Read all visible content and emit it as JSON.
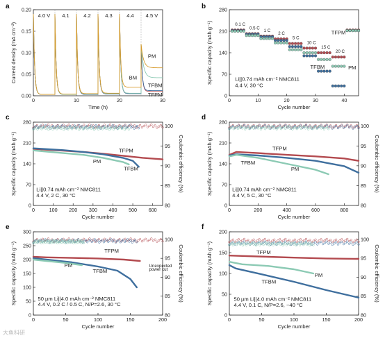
{
  "colors": {
    "tfpm": "#b34a4f",
    "tfbm": "#3f6f9e",
    "pm": "#8ccab4",
    "bm": "#d79a2a",
    "lightpm": "#a9d6c8",
    "grey": "#888888"
  },
  "watermark": "大鱼科研",
  "panels": [
    {
      "id": "a",
      "label": "a",
      "type": "line",
      "xlabel": "Time (h)",
      "ylabel": "Current density (mA cm⁻²)",
      "xlim": [
        0,
        30
      ],
      "ylim": [
        0,
        0.2
      ],
      "xticks": [
        0,
        10,
        20,
        30
      ],
      "yticks": [
        0,
        0.05,
        0.1,
        0.15,
        0.2
      ],
      "yticklabels": [
        "0.00",
        "0.05",
        "0.10",
        "0.15",
        "0.20"
      ],
      "voltage_steps": [
        {
          "label": "4.0 V",
          "start": 0,
          "end": 5
        },
        {
          "label": "4.1",
          "start": 5,
          "end": 10
        },
        {
          "label": "4.2",
          "start": 10,
          "end": 15
        },
        {
          "label": "4.3",
          "start": 15,
          "end": 20
        },
        {
          "label": "4.4",
          "start": 20,
          "end": 25
        },
        {
          "label": "4.5 V",
          "start": 25,
          "end": 30
        }
      ],
      "series": [
        {
          "name": "TFPM",
          "color": "tfpm",
          "end_values": [
            0.003,
            0.003,
            0.003,
            0.004,
            0.005,
            0.01
          ]
        },
        {
          "name": "TFBM",
          "color": "tfbm",
          "end_values": [
            0.003,
            0.003,
            0.003,
            0.004,
            0.005,
            0.012
          ]
        },
        {
          "name": "PM",
          "color": "pm",
          "end_values": [
            0.003,
            0.003,
            0.004,
            0.005,
            0.006,
            0.042
          ]
        },
        {
          "name": "BM",
          "color": "bm",
          "end_values": [
            0.003,
            0.004,
            0.005,
            0.006,
            0.02,
            0.065
          ]
        }
      ],
      "annotations": [
        {
          "text": "PM",
          "x": 26.6,
          "y": 0.088,
          "color": "pm"
        },
        {
          "text": "BM",
          "x": 22.2,
          "y": 0.038,
          "color": "bm"
        },
        {
          "text": "TFBM",
          "x": 26.6,
          "y": 0.02,
          "color": "tfbm"
        },
        {
          "text": "TFPM",
          "x": 26.6,
          "y": -0.002,
          "color": "tfpm"
        }
      ]
    },
    {
      "id": "b",
      "label": "b",
      "type": "scatter",
      "xlabel": "Cycle number",
      "ylabel": "Specific capacity (mAh g⁻¹)",
      "xlim": [
        0,
        45
      ],
      "ylim": [
        0,
        280
      ],
      "xticks": [
        0,
        10,
        20,
        30,
        40
      ],
      "yticks": [
        0,
        70,
        140,
        210,
        280
      ],
      "rates": [
        {
          "label": "0.1 C",
          "start": 1,
          "end": 5,
          "tfpm": 214,
          "tfbm": 212,
          "pm": 210
        },
        {
          "label": "0.5 C",
          "start": 6,
          "end": 10,
          "tfpm": 202,
          "tfbm": 200,
          "pm": 196
        },
        {
          "label": "1 C",
          "start": 11,
          "end": 15,
          "tfpm": 194,
          "tfbm": 192,
          "pm": 186
        },
        {
          "label": "2 C",
          "start": 16,
          "end": 20,
          "tfpm": 185,
          "tfbm": 180,
          "pm": 172
        },
        {
          "label": "5 C",
          "start": 21,
          "end": 25,
          "tfpm": 170,
          "tfbm": 160,
          "pm": 150
        },
        {
          "label": "10 C",
          "start": 26,
          "end": 30,
          "tfpm": 155,
          "tfbm": 130,
          "pm": 140
        },
        {
          "label": "15 C",
          "start": 31,
          "end": 35,
          "tfpm": 140,
          "tfbm": 80,
          "pm": 118
        },
        {
          "label": "20 C",
          "start": 36,
          "end": 40,
          "tfpm": 126,
          "tfbm": 32,
          "pm": 96
        },
        {
          "label": "",
          "start": 41,
          "end": 45,
          "tfpm": 214,
          "tfbm": 212,
          "pm": 212
        }
      ],
      "annotations": [
        {
          "text": "TFPM",
          "x": 35.5,
          "y": 200,
          "color": "tfpm"
        },
        {
          "text": "TFBM",
          "x": 28.2,
          "y": 88,
          "color": "tfbm"
        },
        {
          "text": "PM",
          "x": 41.4,
          "y": 86,
          "color": "pm"
        },
        {
          "text": "Li||0.74 mAh cm⁻² NMC811",
          "x": 2,
          "y": 48,
          "color": "black"
        },
        {
          "text": "4.4 V, 30 °C",
          "x": 2,
          "y": 28,
          "color": "black"
        }
      ]
    },
    {
      "id": "c",
      "label": "c",
      "type": "line-dual",
      "xlabel": "Cycle number",
      "ylabel": "Specific capacity (mAh g⁻¹)",
      "y2label": "Coulombic efficiency (%)",
      "xlim": [
        0,
        650
      ],
      "ylim": [
        0,
        280
      ],
      "y2lim": [
        80,
        101
      ],
      "xticks": [
        0,
        100,
        200,
        300,
        400,
        500,
        600
      ],
      "yticks": [
        0,
        70,
        140,
        210,
        280
      ],
      "y2ticks": [
        80,
        85,
        90,
        95,
        100
      ],
      "series": [
        {
          "name": "TFPM",
          "color": "tfpm",
          "x": [
            0,
            50,
            150,
            250,
            350,
            450,
            550,
            650
          ],
          "y": [
            190,
            188,
            184,
            180,
            174,
            167,
            160,
            155
          ]
        },
        {
          "name": "TFBM",
          "color": "tfbm",
          "x": [
            0,
            50,
            150,
            250,
            350,
            450,
            500,
            530
          ],
          "y": [
            192,
            190,
            186,
            180,
            172,
            160,
            150,
            130
          ]
        },
        {
          "name": "PM",
          "color": "pm",
          "x": [
            0,
            50,
            150,
            250,
            350,
            450,
            480
          ],
          "y": [
            185,
            182,
            176,
            170,
            160,
            146,
            138
          ]
        }
      ],
      "ce": [
        {
          "name": "TFPM",
          "color": "tfpm",
          "value": 100,
          "xmax": 650
        },
        {
          "name": "TFBM",
          "color": "tfbm",
          "value": 99.8,
          "xmax": 530
        },
        {
          "name": "PM",
          "color": "pm",
          "value": 99.5,
          "xmax": 480
        }
      ],
      "annotations": [
        {
          "text": "TFPM",
          "x": 430,
          "y": 178,
          "color": "tfpm"
        },
        {
          "text": "PM",
          "x": 300,
          "y": 142,
          "color": "pm"
        },
        {
          "text": "TFBM",
          "x": 455,
          "y": 118,
          "color": "tfbm"
        },
        {
          "text": "Li||0.74 mAh cm⁻² NMC811",
          "x": 15,
          "y": 48,
          "color": "black"
        },
        {
          "text": "4.4 V, 2 C, 30 °C",
          "x": 15,
          "y": 28,
          "color": "black"
        }
      ]
    },
    {
      "id": "d",
      "label": "d",
      "type": "line-dual",
      "xlabel": "Cycle number",
      "ylabel": "Specific capacity (mAh g⁻¹)",
      "y2label": "Coulombic efficiency (%)",
      "xlim": [
        0,
        900
      ],
      "ylim": [
        0,
        280
      ],
      "y2lim": [
        80,
        101
      ],
      "xticks": [
        0,
        200,
        400,
        600,
        800
      ],
      "yticks": [
        0,
        70,
        140,
        210,
        280
      ],
      "y2ticks": [
        80,
        85,
        90,
        95,
        100
      ],
      "series": [
        {
          "name": "TFPM",
          "color": "tfpm",
          "x": [
            0,
            50,
            200,
            400,
            600,
            800,
            900
          ],
          "y": [
            170,
            180,
            176,
            170,
            165,
            158,
            150
          ]
        },
        {
          "name": "TFBM",
          "color": "tfbm",
          "x": [
            0,
            50,
            200,
            400,
            600,
            800,
            900
          ],
          "y": [
            168,
            172,
            168,
            160,
            150,
            132,
            110
          ]
        },
        {
          "name": "PM",
          "color": "pm",
          "x": [
            0,
            50,
            200,
            400,
            600,
            690
          ],
          "y": [
            165,
            170,
            160,
            140,
            120,
            105
          ]
        }
      ],
      "ce": [
        {
          "name": "TFPM",
          "color": "tfpm",
          "value": 100,
          "xmax": 900
        },
        {
          "name": "TFBM",
          "color": "tfbm",
          "value": 99.8,
          "xmax": 900
        },
        {
          "name": "PM",
          "color": "pm",
          "value": 99.6,
          "xmax": 690
        }
      ],
      "annotations": [
        {
          "text": "TFPM",
          "x": 300,
          "y": 185,
          "color": "tfpm"
        },
        {
          "text": "TFBM",
          "x": 80,
          "y": 138,
          "color": "tfbm"
        },
        {
          "text": "PM",
          "x": 430,
          "y": 117,
          "color": "pm"
        },
        {
          "text": "Li||0.74 mAh cm⁻² NMC811",
          "x": 20,
          "y": 48,
          "color": "black"
        },
        {
          "text": "4.4 V, 5 C, 30 °C",
          "x": 20,
          "y": 28,
          "color": "black"
        }
      ]
    },
    {
      "id": "e",
      "label": "e",
      "type": "line-dual",
      "xlabel": "Cycle number",
      "ylabel": "Specific capacity (mAh g⁻¹)",
      "y2label": "Coulombic efficiency (%)",
      "xlim": [
        0,
        200
      ],
      "ylim": [
        0,
        300
      ],
      "y2lim": [
        80,
        102
      ],
      "xticks": [
        0,
        50,
        100,
        150,
        200
      ],
      "yticks": [
        0,
        50,
        100,
        150,
        200,
        250,
        300
      ],
      "y2ticks": [
        80,
        85,
        90,
        95,
        100
      ],
      "series": [
        {
          "name": "TFPM",
          "color": "tfpm",
          "x": [
            0,
            20,
            60,
            100,
            140,
            165
          ],
          "y": [
            210,
            208,
            206,
            204,
            200,
            195
          ]
        },
        {
          "name": "TFBM",
          "color": "tfbm",
          "x": [
            0,
            20,
            60,
            100,
            130,
            150,
            160
          ],
          "y": [
            205,
            200,
            190,
            175,
            160,
            130,
            100
          ]
        },
        {
          "name": "PM",
          "color": "pm",
          "x": [
            0,
            20,
            50,
            75
          ],
          "y": [
            200,
            195,
            188,
            180
          ]
        }
      ],
      "ce": [
        {
          "name": "TFPM",
          "color": "tfpm",
          "value": 99.8,
          "xmax": 200
        },
        {
          "name": "TFBM",
          "color": "tfbm",
          "value": 99.6,
          "xmax": 160
        },
        {
          "name": "PM",
          "color": "pm",
          "value": 99.4,
          "xmax": 78
        }
      ],
      "annotations": [
        {
          "text": "TFPM",
          "x": 110,
          "y": 225,
          "color": "tfpm"
        },
        {
          "text": "PM",
          "x": 48,
          "y": 172,
          "color": "pm"
        },
        {
          "text": "TFBM",
          "x": 92,
          "y": 152,
          "color": "tfbm"
        },
        {
          "text": "Unexpected",
          "x": 179,
          "y": 172,
          "color": "black",
          "small": true
        },
        {
          "text": "power cut",
          "x": 179,
          "y": 160,
          "color": "black",
          "small": true
        },
        {
          "text": "50 µm Li||4.0 mAh cm⁻² NMC811",
          "x": 7,
          "y": 52,
          "color": "black"
        },
        {
          "text": "4.4 V, 0.2 C / 0.5 C, N/P=2.6, 30 °C",
          "x": 7,
          "y": 32,
          "color": "black"
        }
      ]
    },
    {
      "id": "f",
      "label": "f",
      "type": "line-dual",
      "xlabel": "Cycle number",
      "ylabel": "Specific capacity (mAh g⁻¹)",
      "y2label": "Coulombic efficiency (%)",
      "xlim": [
        0,
        200
      ],
      "ylim": [
        0,
        200
      ],
      "y2lim": [
        80,
        102
      ],
      "xticks": [
        0,
        50,
        100,
        150,
        200
      ],
      "yticks": [
        0,
        50,
        100,
        150,
        200
      ],
      "y2ticks": [
        80,
        85,
        90,
        95,
        100
      ],
      "series": [
        {
          "name": "TFPM",
          "color": "tfpm",
          "x": [
            0,
            20,
            60,
            100,
            150,
            200
          ],
          "y": [
            143,
            142,
            140,
            138,
            136,
            135
          ]
        },
        {
          "name": "TFBM",
          "color": "tfbm",
          "x": [
            0,
            10,
            50,
            100,
            150,
            200
          ],
          "y": [
            120,
            112,
            98,
            80,
            60,
            42
          ]
        },
        {
          "name": "PM",
          "color": "pm",
          "x": [
            0,
            20,
            60,
            100,
            130
          ],
          "y": [
            128,
            122,
            118,
            110,
            100
          ]
        }
      ],
      "ce": [
        {
          "name": "TFPM",
          "color": "tfpm",
          "value": 99.7,
          "xmax": 200
        },
        {
          "name": "TFBM",
          "color": "tfbm",
          "value": 99.0,
          "xmax": 200
        },
        {
          "name": "PM",
          "color": "pm",
          "value": 98.8,
          "xmax": 130
        }
      ],
      "annotations": [
        {
          "text": "TFPM",
          "x": 42,
          "y": 147,
          "color": "tfpm"
        },
        {
          "text": "PM",
          "x": 132,
          "y": 92,
          "color": "pm"
        },
        {
          "text": "TFBM",
          "x": 50,
          "y": 76,
          "color": "tfbm"
        },
        {
          "text": "50 µm Li||4.0 mAh cm⁻² NMC811",
          "x": 7,
          "y": 34,
          "color": "black"
        },
        {
          "text": "4.4 V, 0.1 C, N/P=2.6, −40 °C",
          "x": 7,
          "y": 20,
          "color": "black"
        }
      ]
    }
  ]
}
